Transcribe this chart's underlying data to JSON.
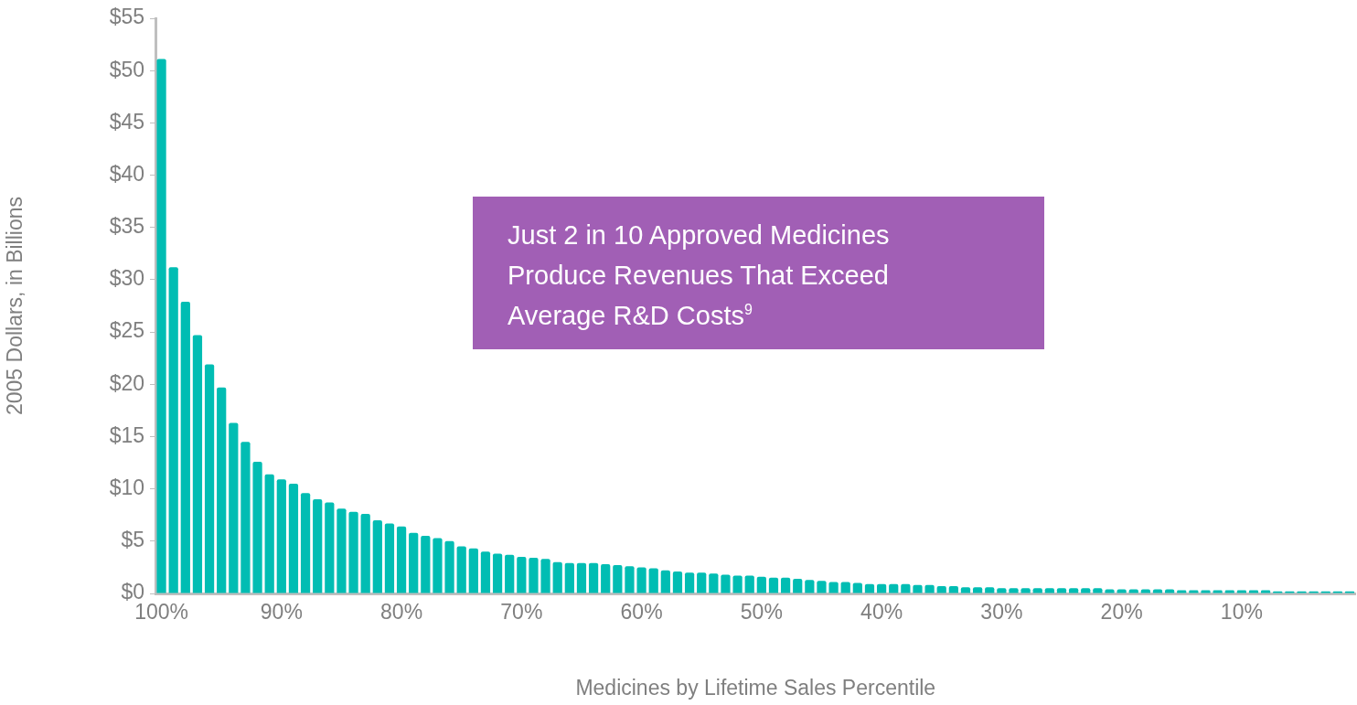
{
  "chart_data": {
    "type": "bar",
    "xlabel": "Medicines by Lifetime Sales Percentile",
    "ylabel": "2005 Dollars, in Billions",
    "annotations": [
      "Just 2 in 10 Approved Medicines Produce Revenues That Exceed Average R&D Costs$^{9}$"
    ],
    "categories": [
      "100%",
      null,
      null,
      null,
      null,
      null,
      null,
      null,
      null,
      null,
      "90%",
      null,
      null,
      null,
      null,
      null,
      null,
      null,
      null,
      null,
      "80%",
      null,
      null,
      null,
      null,
      null,
      null,
      null,
      null,
      null,
      "70%",
      null,
      null,
      null,
      null,
      null,
      null,
      null,
      null,
      null,
      "60%",
      null,
      null,
      null,
      null,
      null,
      null,
      null,
      null,
      null,
      "50%",
      null,
      null,
      null,
      null,
      null,
      null,
      null,
      null,
      null,
      "40%",
      null,
      null,
      null,
      null,
      null,
      null,
      null,
      null,
      null,
      "30%",
      null,
      null,
      null,
      null,
      null,
      null,
      null,
      null,
      null,
      "20%",
      null,
      null,
      null,
      null,
      null,
      null,
      null,
      null,
      null,
      "10%",
      null,
      null,
      null,
      null,
      null,
      null,
      null,
      null,
      null
    ],
    "values": [
      51.1,
      31.2,
      27.9,
      24.7,
      21.9,
      19.7,
      16.3,
      14.5,
      12.6,
      11.4,
      10.9,
      10.5,
      9.6,
      9.0,
      8.7,
      8.1,
      7.8,
      7.6,
      7.0,
      6.7,
      6.4,
      5.8,
      5.5,
      5.3,
      5.0,
      4.5,
      4.3,
      4.0,
      3.8,
      3.7,
      3.5,
      3.4,
      3.3,
      3.0,
      2.9,
      2.9,
      2.9,
      2.8,
      2.7,
      2.6,
      2.5,
      2.4,
      2.2,
      2.1,
      2.0,
      2.0,
      1.9,
      1.8,
      1.7,
      1.7,
      1.6,
      1.5,
      1.5,
      1.4,
      1.3,
      1.2,
      1.1,
      1.1,
      1.0,
      0.9,
      0.9,
      0.9,
      0.9,
      0.8,
      0.8,
      0.7,
      0.7,
      0.6,
      0.6,
      0.6,
      0.5,
      0.5,
      0.5,
      0.5,
      0.5,
      0.5,
      0.5,
      0.5,
      0.5,
      0.4,
      0.4,
      0.4,
      0.4,
      0.4,
      0.4,
      0.3,
      0.3,
      0.3,
      0.3,
      0.3,
      0.3,
      0.3,
      0.3,
      0.2,
      0.2,
      0.2,
      0.2,
      0.2,
      0.2,
      0.2
    ],
    "color": "#00bdb3",
    "ylim": [
      0,
      55
    ],
    "yticks": [
      {
        "value": 0,
        "label": "$0"
      },
      {
        "value": 5,
        "label": "$5"
      },
      {
        "value": 10,
        "label": "$10"
      },
      {
        "value": 15,
        "label": "$15"
      },
      {
        "value": 20,
        "label": "$20"
      },
      {
        "value": 25,
        "label": "$25"
      },
      {
        "value": 30,
        "label": "$30"
      },
      {
        "value": 35,
        "label": "$35"
      },
      {
        "value": 40,
        "label": "$40"
      },
      {
        "value": 45,
        "label": "$45"
      },
      {
        "value": 50,
        "label": "$50"
      },
      {
        "value": 55,
        "label": "$55"
      }
    ],
    "grid": false,
    "legend": false
  }
}
